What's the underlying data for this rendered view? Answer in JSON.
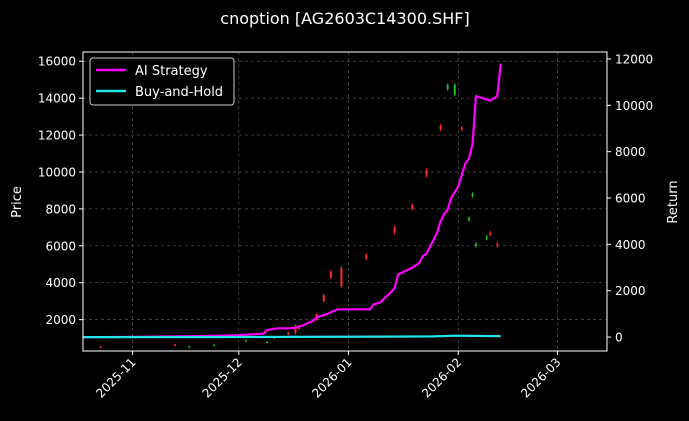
{
  "chart_data": {
    "type": "line",
    "title": "cnoption [AG2603C14300.SHF]",
    "xlabel": "",
    "ylabel_left": "Price",
    "ylabel_right": "Return",
    "xlim": [
      "2025-10-18",
      "2026-03-15"
    ],
    "ylim_left": [
      300,
      16500
    ],
    "ylim_right": [
      -600,
      12300
    ],
    "x_ticks": [
      "2025-11-01",
      "2025-12-01",
      "2026-01-01",
      "2026-02-01",
      "2026-03-01"
    ],
    "x_tick_labels": [
      "2025-11",
      "2025-12",
      "2026-01",
      "2026-02",
      "2026-03"
    ],
    "y_left_ticks": [
      2000,
      4000,
      6000,
      8000,
      10000,
      12000,
      14000,
      16000
    ],
    "y_right_ticks": [
      0,
      2000,
      4000,
      6000,
      8000,
      10000,
      12000
    ],
    "grid": true,
    "legend_position": "top-left",
    "colors": {
      "ai_strategy": "#ff00ff",
      "buy_and_hold": "#22e5ea",
      "candle_up": "#ff2a2a",
      "candle_down": "#22c222",
      "grid": "#555555"
    },
    "series": [
      {
        "name": "AI Strategy",
        "axis": "right",
        "x": [
          "2025-10-18",
          "2025-11-01",
          "2025-11-15",
          "2025-11-25",
          "2025-12-01",
          "2025-12-05",
          "2025-12-08",
          "2025-12-09",
          "2025-12-12",
          "2025-12-15",
          "2025-12-17",
          "2025-12-19",
          "2025-12-22",
          "2025-12-23",
          "2025-12-26",
          "2025-12-29",
          "2026-01-05",
          "2026-01-07",
          "2026-01-08",
          "2026-01-10",
          "2026-01-12",
          "2026-01-14",
          "2026-01-15",
          "2026-01-19",
          "2026-01-21",
          "2026-01-22",
          "2026-01-23",
          "2026-01-26",
          "2026-01-27",
          "2026-01-28",
          "2026-01-29",
          "2026-01-30",
          "2026-02-01",
          "2026-02-03",
          "2026-02-04",
          "2026-02-05",
          "2026-02-06",
          "2026-02-10",
          "2026-02-12",
          "2026-02-13"
        ],
        "y": [
          0,
          10,
          30,
          60,
          80,
          120,
          150,
          300,
          380,
          380,
          400,
          500,
          700,
          850,
          1000,
          1200,
          1200,
          1200,
          1400,
          1500,
          1800,
          2100,
          2700,
          3000,
          3200,
          3500,
          3600,
          4500,
          5000,
          5300,
          5500,
          6000,
          6500,
          7500,
          7700,
          8300,
          10400,
          10200,
          10400,
          11800
        ]
      },
      {
        "name": "Buy-and-Hold",
        "axis": "right",
        "x": [
          "2025-10-18",
          "2025-11-15",
          "2025-12-15",
          "2026-01-10",
          "2026-01-25",
          "2026-01-31",
          "2026-02-05",
          "2026-02-13"
        ],
        "y": [
          0,
          0,
          10,
          20,
          30,
          60,
          50,
          40
        ]
      }
    ],
    "candles": [
      {
        "date": "2025-10-23",
        "open": 500,
        "close": 540,
        "high": 560,
        "low": 490
      },
      {
        "date": "2025-11-13",
        "open": 600,
        "close": 650,
        "high": 680,
        "low": 590
      },
      {
        "date": "2025-11-17",
        "open": 560,
        "close": 520,
        "high": 580,
        "low": 500
      },
      {
        "date": "2025-11-24",
        "open": 640,
        "close": 600,
        "high": 660,
        "low": 580
      },
      {
        "date": "2025-12-03",
        "open": 900,
        "close": 850,
        "high": 920,
        "low": 830
      },
      {
        "date": "2025-12-09",
        "open": 800,
        "close": 760,
        "high": 830,
        "low": 740
      },
      {
        "date": "2025-12-11",
        "open": 1050,
        "close": 1000,
        "high": 1080,
        "low": 980
      },
      {
        "date": "2025-12-15",
        "open": 1200,
        "close": 1300,
        "high": 1350,
        "low": 1150
      },
      {
        "date": "2025-12-17",
        "open": 1300,
        "close": 1650,
        "high": 1750,
        "low": 1200
      },
      {
        "date": "2025-12-18",
        "open": 1500,
        "close": 1650,
        "high": 1700,
        "low": 1450
      },
      {
        "date": "2025-12-23",
        "open": 2000,
        "close": 2300,
        "high": 2350,
        "low": 1950
      },
      {
        "date": "2025-12-25",
        "open": 3000,
        "close": 3300,
        "high": 3400,
        "low": 2950
      },
      {
        "date": "2025-12-27",
        "open": 4300,
        "close": 4600,
        "high": 4700,
        "low": 4200
      },
      {
        "date": "2025-12-30",
        "open": 3800,
        "close": 4800,
        "high": 4900,
        "low": 3700
      },
      {
        "date": "2026-01-06",
        "open": 5300,
        "close": 5500,
        "high": 5600,
        "low": 5200
      },
      {
        "date": "2026-01-14",
        "open": 6700,
        "close": 7000,
        "high": 7100,
        "low": 6600
      },
      {
        "date": "2026-01-19",
        "open": 8000,
        "close": 8200,
        "high": 8300,
        "low": 7900
      },
      {
        "date": "2026-01-23",
        "open": 9800,
        "close": 10100,
        "high": 10200,
        "low": 9700
      },
      {
        "date": "2026-01-27",
        "open": 12300,
        "close": 12500,
        "high": 12600,
        "low": 12200
      },
      {
        "date": "2026-01-29",
        "open": 14700,
        "close": 14500,
        "high": 14800,
        "low": 14400
      },
      {
        "date": "2026-01-31",
        "open": 14700,
        "close": 14200,
        "high": 14800,
        "low": 14100
      },
      {
        "date": "2026-02-02",
        "open": 12300,
        "close": 12400,
        "high": 12500,
        "low": 12200
      },
      {
        "date": "2026-02-04",
        "open": 7500,
        "close": 7400,
        "high": 7600,
        "low": 7300
      },
      {
        "date": "2026-02-05",
        "open": 8800,
        "close": 8700,
        "high": 8900,
        "low": 8600
      },
      {
        "date": "2026-02-06",
        "open": 6100,
        "close": 6000,
        "high": 6200,
        "low": 5900
      },
      {
        "date": "2026-02-09",
        "open": 6500,
        "close": 6400,
        "high": 6600,
        "low": 6300
      },
      {
        "date": "2026-02-10",
        "open": 6600,
        "close": 6700,
        "high": 6800,
        "low": 6500
      },
      {
        "date": "2026-02-12",
        "open": 6000,
        "close": 6100,
        "high": 6200,
        "low": 5900
      }
    ]
  }
}
